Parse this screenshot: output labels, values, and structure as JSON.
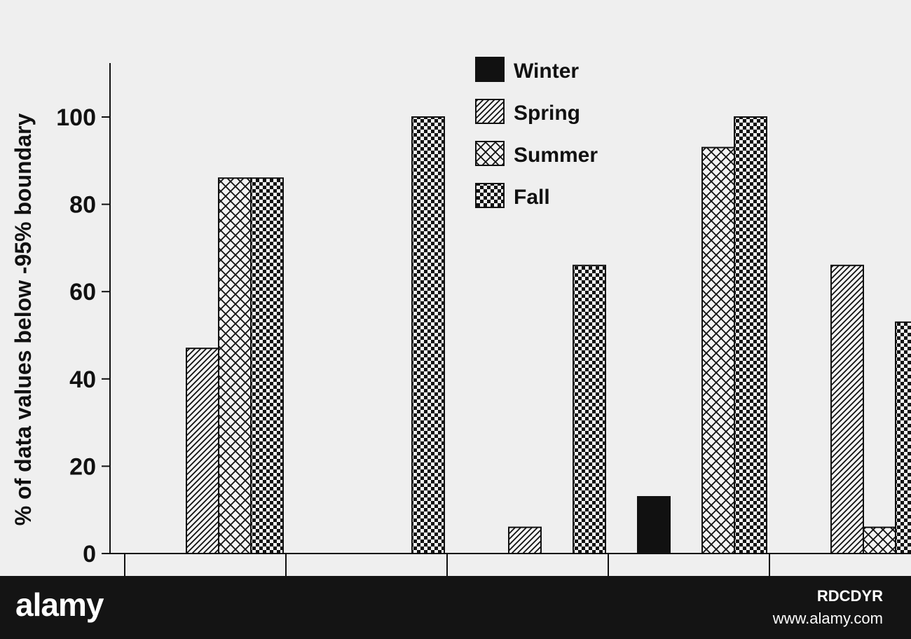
{
  "chart_data": {
    "type": "bar",
    "title": "",
    "xlabel": "",
    "ylabel": "% of data values below -95% boundary",
    "ylim": [
      0,
      110
    ],
    "yticks": [
      0,
      20,
      40,
      60,
      80,
      100
    ],
    "grid": false,
    "legend_position": "top-center",
    "categories": [
      "",
      "",
      "",
      "",
      ""
    ],
    "series": [
      {
        "name": "Winter",
        "pattern": "solid",
        "color": "#111111",
        "values": [
          0,
          0,
          0,
          13,
          0
        ]
      },
      {
        "name": "Spring",
        "pattern": "diagonal-hatch",
        "color": "#111111",
        "values": [
          47,
          0,
          6,
          0,
          66
        ]
      },
      {
        "name": "Summer",
        "pattern": "crosshatch",
        "color": "#111111",
        "values": [
          86,
          0,
          0,
          93,
          6
        ]
      },
      {
        "name": "Fall",
        "pattern": "checker",
        "color": "#111111",
        "values": [
          86,
          100,
          66,
          100,
          53
        ]
      }
    ]
  },
  "watermark": {
    "logo": "alamy",
    "image_id": "RDCDYR",
    "url": "www.alamy.com"
  }
}
